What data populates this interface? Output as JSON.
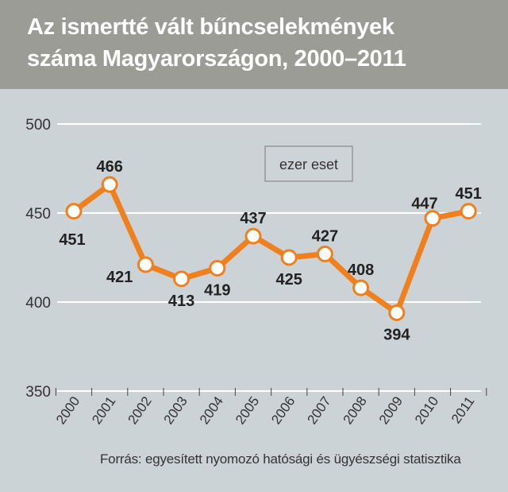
{
  "title_line1": "Az ismertté vált bűncselekmények",
  "title_line2": "száma Magyarországon, 2000–2011",
  "source": "Forrás: egyesített nyomozó hatósági és ügyészségi statisztika",
  "colors": {
    "header_bg": "#9b9c95",
    "plot_bg": "#cbd3d7",
    "line": "#f0801e",
    "marker_fill": "#ffffff",
    "grid": "#ffffff"
  },
  "chart_data": {
    "type": "line",
    "title": "Az ismertté vált bűncselekmények száma Magyarországon, 2000–2011",
    "unit_label": "ezer eset",
    "categories": [
      "2000",
      "2001",
      "2002",
      "2003",
      "2004",
      "2005",
      "2006",
      "2007",
      "2008",
      "2009",
      "2010",
      "2011"
    ],
    "values": [
      451,
      466,
      421,
      413,
      419,
      437,
      425,
      427,
      408,
      394,
      447,
      451
    ],
    "y_ticks": [
      350,
      400,
      450,
      500
    ],
    "ylim": [
      350,
      500
    ],
    "grid": true,
    "legend": "none"
  }
}
